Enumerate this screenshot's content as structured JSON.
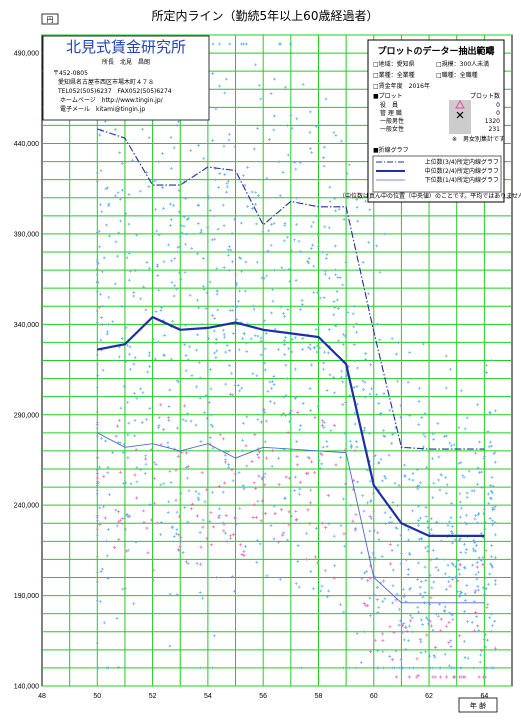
{
  "chart_data": {
    "type": "line",
    "title": "所定内ライン（勤続5年以上60歳経過者）",
    "ylabel": "円",
    "xlabel": "年 齢",
    "xlim": [
      48,
      65
    ],
    "ylim": [
      140000,
      500000
    ],
    "x_ticks": [
      "48",
      "50",
      "52",
      "54",
      "56",
      "58",
      "60",
      "62",
      "64"
    ],
    "y_ticks": [
      "140,000",
      "190,000",
      "240,000",
      "290,000",
      "340,000",
      "390,000",
      "440,000",
      "490,000"
    ],
    "grid": true,
    "series": [
      {
        "name": "上位数(3/4)所定内線グラフ",
        "style": "dashdot",
        "color": "#1f2ea8",
        "points": [
          [
            50,
            448000
          ],
          [
            51,
            443000
          ],
          [
            52,
            417000
          ],
          [
            53,
            417000
          ],
          [
            54,
            427000
          ],
          [
            55,
            425000
          ],
          [
            56,
            395000
          ],
          [
            57,
            408000
          ],
          [
            58,
            405000
          ],
          [
            59,
            405000
          ],
          [
            60,
            336000
          ],
          [
            61,
            272000
          ],
          [
            62,
            271000
          ],
          [
            63,
            271000
          ],
          [
            64,
            271000
          ]
        ]
      },
      {
        "name": "中位数(2/4)所定内線グラフ",
        "style": "solid",
        "color": "#1f2ea8",
        "points": [
          [
            50,
            326000
          ],
          [
            51,
            329000
          ],
          [
            52,
            344000
          ],
          [
            53,
            337000
          ],
          [
            54,
            338000
          ],
          [
            55,
            341000
          ],
          [
            56,
            337000
          ],
          [
            57,
            335000
          ],
          [
            58,
            333000
          ],
          [
            59,
            318000
          ],
          [
            60,
            251000
          ],
          [
            61,
            230000
          ],
          [
            62,
            223000
          ],
          [
            63,
            223000
          ],
          [
            64,
            223000
          ]
        ]
      },
      {
        "name": "下位数(1/4)所定内線グラフ",
        "style": "thin",
        "color": "#4a6ad8",
        "points": [
          [
            50,
            280000
          ],
          [
            51,
            272000
          ],
          [
            52,
            274000
          ],
          [
            53,
            270000
          ],
          [
            54,
            274000
          ],
          [
            55,
            266000
          ],
          [
            56,
            272000
          ],
          [
            57,
            271000
          ],
          [
            58,
            270000
          ],
          [
            59,
            269000
          ],
          [
            60,
            200000
          ],
          [
            61,
            186000
          ],
          [
            62,
            186000
          ],
          [
            63,
            186000
          ],
          [
            64,
            186000
          ]
        ]
      }
    ],
    "scatter": {
      "male_color": "#5aaeea",
      "female_color": "#ee66bb",
      "male_count": "1320",
      "female_count": "231"
    }
  },
  "org": {
    "name": "北見式賃金研究所",
    "director": "所長　北見　昌朗",
    "postal": "〒452-0805",
    "address": "愛知県名古屋市西区市場木町４７８",
    "tel": "TEL052(505)6237　FAX052(505)6274",
    "home": "ホームページ　http://www.tingin.jp/",
    "mail": "電子メール　kitami@tingin.jp"
  },
  "info": {
    "heading": "プロットのデーター抽出範疇",
    "region": "□地域：愛知県",
    "scale": "□規模：300人未満",
    "industry": "□業種：全業種",
    "job": "□職種：全職種",
    "year": "□賃金年度　2016年",
    "plot_label": "■プロット",
    "count_label": "プロット数",
    "rows": [
      {
        "name": "役　員",
        "count": "0",
        "color": "#ee44aa"
      },
      {
        "name": "管 理 職",
        "count": "0",
        "color": "#000000"
      },
      {
        "name": "一般男性",
        "count": "1320",
        "color": "#3399dd"
      },
      {
        "name": "一般女性",
        "count": "231",
        "color": "#ee66bb"
      }
    ],
    "note": "※　男女別集計です",
    "line_label": "■折線グラフ",
    "footnote": "（中位数は真ん中の位置（中央値）のことです。平均ではありません。）"
  },
  "colors": {
    "grid": "#22cc22",
    "line": "#1f2ea8"
  }
}
